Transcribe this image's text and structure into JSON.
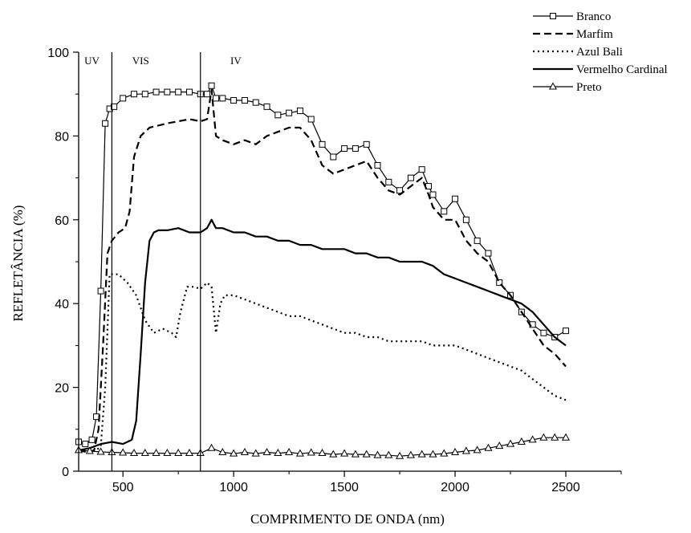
{
  "chart_data": {
    "type": "line",
    "xlabel": "COMPRIMENTO DE ONDA (nm)",
    "ylabel": "REFLETÂNCIA (%)",
    "xlim": [
      300,
      2750
    ],
    "ylim": [
      0,
      100
    ],
    "xticks": [
      500,
      1000,
      1500,
      2000,
      2500
    ],
    "xtick_labels": [
      "500",
      "1000",
      "1500",
      "2000",
      "2500"
    ],
    "yticks": [
      0,
      20,
      40,
      60,
      80,
      100
    ],
    "ytick_labels": [
      "0",
      "20",
      "40",
      "60",
      "80",
      "100"
    ],
    "grid": false,
    "legend_position": "top-right",
    "regions": [
      {
        "label": "UV",
        "boundary_x": 450
      },
      {
        "label": "VIS",
        "boundary_x": 850
      },
      {
        "label": "IV"
      }
    ],
    "series": [
      {
        "name": "Branco",
        "style": "solid-square-markers",
        "x": [
          300,
          330,
          360,
          380,
          400,
          420,
          440,
          460,
          500,
          550,
          600,
          650,
          700,
          750,
          800,
          850,
          880,
          900,
          920,
          950,
          1000,
          1050,
          1100,
          1150,
          1200,
          1250,
          1300,
          1350,
          1400,
          1450,
          1500,
          1550,
          1600,
          1650,
          1700,
          1750,
          1800,
          1850,
          1880,
          1900,
          1950,
          2000,
          2050,
          2100,
          2150,
          2200,
          2250,
          2300,
          2350,
          2400,
          2450,
          2500
        ],
        "y": [
          7,
          6.5,
          7.5,
          13,
          43,
          83,
          86.5,
          87,
          89,
          90,
          90,
          90.5,
          90.5,
          90.5,
          90.5,
          90,
          90,
          92,
          89,
          89,
          88.5,
          88.5,
          88,
          87,
          85,
          85.5,
          86,
          84,
          78,
          75,
          77,
          77,
          78,
          73,
          69,
          67,
          70,
          72,
          68,
          66,
          62,
          65,
          60,
          55,
          52,
          45,
          42,
          38,
          35,
          33,
          32,
          33.5
        ]
      },
      {
        "name": "Marfim",
        "style": "dashed",
        "x": [
          300,
          340,
          370,
          390,
          410,
          430,
          450,
          480,
          510,
          530,
          550,
          580,
          620,
          700,
          800,
          850,
          880,
          900,
          920,
          950,
          1000,
          1050,
          1100,
          1150,
          1200,
          1250,
          1300,
          1350,
          1400,
          1450,
          1500,
          1550,
          1600,
          1650,
          1700,
          1750,
          1800,
          1850,
          1880,
          1900,
          1950,
          2000,
          2050,
          2100,
          2150,
          2200,
          2250,
          2300,
          2350,
          2400,
          2450,
          2500
        ],
        "y": [
          5,
          4.5,
          5,
          10,
          30,
          52,
          55,
          57,
          58,
          62,
          75,
          80,
          82,
          83,
          84,
          83.5,
          84,
          91,
          80,
          79,
          78,
          79,
          78,
          80,
          81,
          82,
          82,
          79,
          73,
          71,
          72,
          73,
          74,
          70,
          67,
          66,
          68,
          70,
          66,
          63,
          60,
          60,
          55,
          52,
          50,
          45,
          42,
          38,
          34,
          30,
          28,
          25
        ]
      },
      {
        "name": "Azul Bali",
        "style": "dotted",
        "x": [
          300,
          340,
          380,
          400,
          420,
          440,
          480,
          520,
          560,
          600,
          640,
          680,
          720,
          740,
          760,
          790,
          820,
          850,
          880,
          900,
          920,
          940,
          960,
          1000,
          1050,
          1100,
          1150,
          1200,
          1250,
          1300,
          1350,
          1400,
          1450,
          1500,
          1550,
          1600,
          1650,
          1700,
          1750,
          1800,
          1850,
          1900,
          1950,
          2000,
          2050,
          2100,
          2150,
          2200,
          2250,
          2300,
          2350,
          2400,
          2450,
          2500
        ],
        "y": [
          5,
          4.8,
          5,
          6,
          20,
          47,
          47,
          45,
          42,
          36,
          33,
          34,
          33,
          32,
          38,
          44,
          44,
          43.5,
          45,
          44,
          33,
          40,
          42,
          42,
          41,
          40,
          39,
          38,
          37,
          37,
          36,
          35,
          34,
          33,
          33,
          32,
          32,
          31,
          31,
          31,
          31,
          30,
          30,
          30,
          29,
          28,
          27,
          26,
          25,
          24,
          22,
          20,
          18,
          17
        ]
      },
      {
        "name": "Vermelho Cardinal",
        "style": "solid",
        "x": [
          300,
          350,
          400,
          450,
          500,
          540,
          560,
          580,
          600,
          620,
          640,
          660,
          700,
          750,
          800,
          850,
          880,
          900,
          920,
          950,
          1000,
          1050,
          1100,
          1150,
          1200,
          1250,
          1300,
          1350,
          1400,
          1450,
          1500,
          1550,
          1600,
          1650,
          1700,
          1750,
          1800,
          1850,
          1900,
          1950,
          2000,
          2050,
          2100,
          2150,
          2200,
          2250,
          2300,
          2350,
          2400,
          2450,
          2500
        ],
        "y": [
          5,
          5.5,
          6.5,
          7,
          6.5,
          7.5,
          12,
          28,
          45,
          55,
          57,
          57.5,
          57.5,
          58,
          57,
          57,
          58,
          60,
          58,
          58,
          57,
          57,
          56,
          56,
          55,
          55,
          54,
          54,
          53,
          53,
          53,
          52,
          52,
          51,
          51,
          50,
          50,
          50,
          49,
          47,
          46,
          45,
          44,
          43,
          42,
          41,
          40,
          38,
          35,
          32,
          30
        ]
      },
      {
        "name": "Preto",
        "style": "solid-triangle-markers",
        "x": [
          300,
          350,
          400,
          450,
          500,
          550,
          600,
          650,
          700,
          750,
          800,
          850,
          900,
          950,
          1000,
          1050,
          1100,
          1150,
          1200,
          1250,
          1300,
          1350,
          1400,
          1450,
          1500,
          1550,
          1600,
          1650,
          1700,
          1750,
          1800,
          1850,
          1900,
          1950,
          2000,
          2050,
          2100,
          2150,
          2200,
          2250,
          2300,
          2350,
          2400,
          2450,
          2500
        ],
        "y": [
          5,
          4.8,
          4.6,
          4.5,
          4.4,
          4.3,
          4.3,
          4.3,
          4.3,
          4.3,
          4.3,
          4.3,
          5.5,
          4.5,
          4.2,
          4.5,
          4.2,
          4.5,
          4.3,
          4.5,
          4.2,
          4.4,
          4.3,
          4.0,
          4.2,
          4.0,
          4.0,
          3.8,
          3.8,
          3.6,
          3.8,
          4.0,
          4.0,
          4.2,
          4.5,
          4.8,
          5.0,
          5.5,
          6.0,
          6.5,
          7.0,
          7.5,
          8.0,
          8.0,
          8.0
        ]
      }
    ]
  }
}
